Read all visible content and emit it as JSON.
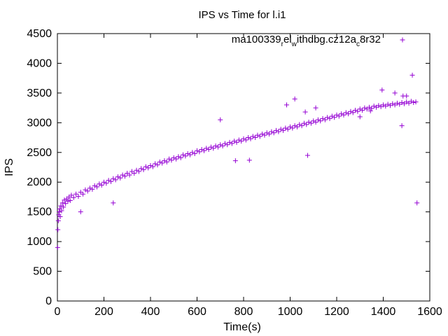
{
  "chart_data": {
    "type": "scatter",
    "title": "IPS vs Time for l.i1",
    "xlabel": "Time(s)",
    "ylabel": "IPS",
    "xlim": [
      0,
      1600
    ],
    "ylim": [
      0,
      4500
    ],
    "xticks": [
      "0",
      "200",
      "400",
      "600",
      "800",
      "1000",
      "1200",
      "1400",
      "1600"
    ],
    "yticks": [
      "0",
      "500",
      "1000",
      "1500",
      "2000",
      "2500",
      "3000",
      "3500",
      "4000",
      "4500"
    ],
    "legend_placement": "top-right",
    "grid": false,
    "marker": "+",
    "color": "#9400d3",
    "legend": {
      "parts": [
        "ma100339",
        "r",
        "el",
        "w",
        "ithdbg.cz12a",
        "c",
        "8r32"
      ]
    },
    "series": [
      {
        "name": "ma100339_rel_withdbg.cz12a_c8r32",
        "points": [
          [
            1,
            900
          ],
          [
            2,
            1200
          ],
          [
            4,
            1350
          ],
          [
            6,
            1450
          ],
          [
            8,
            1500
          ],
          [
            10,
            1550
          ],
          [
            12,
            1420
          ],
          [
            15,
            1600
          ],
          [
            18,
            1520
          ],
          [
            22,
            1650
          ],
          [
            26,
            1580
          ],
          [
            30,
            1700
          ],
          [
            35,
            1640
          ],
          [
            40,
            1720
          ],
          [
            45,
            1680
          ],
          [
            50,
            1750
          ],
          [
            55,
            1690
          ],
          [
            60,
            1780
          ],
          [
            70,
            1740
          ],
          [
            80,
            1800
          ],
          [
            90,
            1760
          ],
          [
            100,
            1500
          ],
          [
            100,
            1830
          ],
          [
            110,
            1800
          ],
          [
            120,
            1870
          ],
          [
            130,
            1850
          ],
          [
            140,
            1900
          ],
          [
            150,
            1880
          ],
          [
            160,
            1940
          ],
          [
            170,
            1920
          ],
          [
            180,
            1970
          ],
          [
            190,
            1950
          ],
          [
            200,
            2000
          ],
          [
            210,
            1980
          ],
          [
            220,
            2030
          ],
          [
            230,
            2010
          ],
          [
            240,
            1650
          ],
          [
            240,
            2060
          ],
          [
            250,
            2040
          ],
          [
            260,
            2090
          ],
          [
            270,
            2070
          ],
          [
            280,
            2120
          ],
          [
            290,
            2100
          ],
          [
            300,
            2150
          ],
          [
            310,
            2120
          ],
          [
            320,
            2180
          ],
          [
            330,
            2150
          ],
          [
            340,
            2200
          ],
          [
            350,
            2180
          ],
          [
            360,
            2230
          ],
          [
            370,
            2210
          ],
          [
            380,
            2260
          ],
          [
            390,
            2240
          ],
          [
            400,
            2280
          ],
          [
            410,
            2260
          ],
          [
            420,
            2310
          ],
          [
            430,
            2290
          ],
          [
            440,
            2340
          ],
          [
            450,
            2320
          ],
          [
            460,
            2360
          ],
          [
            470,
            2340
          ],
          [
            480,
            2390
          ],
          [
            490,
            2370
          ],
          [
            500,
            2410
          ],
          [
            510,
            2390
          ],
          [
            520,
            2430
          ],
          [
            530,
            2410
          ],
          [
            540,
            2460
          ],
          [
            550,
            2440
          ],
          [
            560,
            2480
          ],
          [
            570,
            2460
          ],
          [
            580,
            2500
          ],
          [
            590,
            2480
          ],
          [
            600,
            2530
          ],
          [
            610,
            2510
          ],
          [
            620,
            2550
          ],
          [
            630,
            2530
          ],
          [
            640,
            2570
          ],
          [
            650,
            2550
          ],
          [
            660,
            2590
          ],
          [
            670,
            2570
          ],
          [
            680,
            2610
          ],
          [
            690,
            2590
          ],
          [
            700,
            2630
          ],
          [
            710,
            2610
          ],
          [
            720,
            2650
          ],
          [
            730,
            2630
          ],
          [
            740,
            2670
          ],
          [
            750,
            2650
          ],
          [
            760,
            2690
          ],
          [
            770,
            2670
          ],
          [
            780,
            2710
          ],
          [
            790,
            2690
          ],
          [
            800,
            2730
          ],
          [
            810,
            2710
          ],
          [
            820,
            2750
          ],
          [
            830,
            2730
          ],
          [
            840,
            2770
          ],
          [
            850,
            2750
          ],
          [
            860,
            2790
          ],
          [
            870,
            2770
          ],
          [
            880,
            2810
          ],
          [
            890,
            2790
          ],
          [
            900,
            2830
          ],
          [
            910,
            2810
          ],
          [
            920,
            2850
          ],
          [
            930,
            2830
          ],
          [
            940,
            2870
          ],
          [
            950,
            2850
          ],
          [
            960,
            2890
          ],
          [
            970,
            2870
          ],
          [
            980,
            2910
          ],
          [
            990,
            2890
          ],
          [
            1000,
            2930
          ],
          [
            1010,
            2910
          ],
          [
            1020,
            2950
          ],
          [
            1030,
            2930
          ],
          [
            1040,
            2970
          ],
          [
            1050,
            2950
          ],
          [
            1060,
            2990
          ],
          [
            1070,
            2970
          ],
          [
            1080,
            3010
          ],
          [
            1090,
            2990
          ],
          [
            1100,
            3030
          ],
          [
            1110,
            3010
          ],
          [
            1120,
            3050
          ],
          [
            1130,
            3030
          ],
          [
            1140,
            3070
          ],
          [
            1150,
            3050
          ],
          [
            1160,
            3090
          ],
          [
            1170,
            3070
          ],
          [
            1180,
            3110
          ],
          [
            1190,
            3090
          ],
          [
            1200,
            3130
          ],
          [
            1210,
            3110
          ],
          [
            1220,
            3150
          ],
          [
            1230,
            3130
          ],
          [
            1240,
            3170
          ],
          [
            1250,
            3150
          ],
          [
            1260,
            3190
          ],
          [
            1270,
            3170
          ],
          [
            1280,
            3210
          ],
          [
            1290,
            3190
          ],
          [
            1300,
            3230
          ],
          [
            1310,
            3210
          ],
          [
            1320,
            3250
          ],
          [
            1330,
            3230
          ],
          [
            1340,
            3260
          ],
          [
            1350,
            3240
          ],
          [
            1360,
            3280
          ],
          [
            1370,
            3260
          ],
          [
            1380,
            3290
          ],
          [
            1390,
            3270
          ],
          [
            1400,
            3300
          ],
          [
            1410,
            3280
          ],
          [
            1420,
            3310
          ],
          [
            1430,
            3290
          ],
          [
            1440,
            3320
          ],
          [
            1450,
            3300
          ],
          [
            1460,
            3330
          ],
          [
            1470,
            3310
          ],
          [
            1480,
            3340
          ],
          [
            1490,
            3320
          ],
          [
            1500,
            3350
          ],
          [
            1510,
            3330
          ],
          [
            1520,
            3360
          ],
          [
            1530,
            3340
          ],
          [
            1540,
            3350
          ],
          [
            700,
            3050
          ],
          [
            765,
            2360
          ],
          [
            825,
            2370
          ],
          [
            985,
            3300
          ],
          [
            1020,
            3400
          ],
          [
            1065,
            3180
          ],
          [
            1075,
            2450
          ],
          [
            1110,
            3250
          ],
          [
            1300,
            3100
          ],
          [
            1345,
            3200
          ],
          [
            1395,
            3550
          ],
          [
            1450,
            3500
          ],
          [
            1480,
            2950
          ],
          [
            1500,
            3450
          ],
          [
            1525,
            3800
          ],
          [
            1545,
            1650
          ],
          [
            1485,
            3450
          ]
        ]
      }
    ]
  }
}
